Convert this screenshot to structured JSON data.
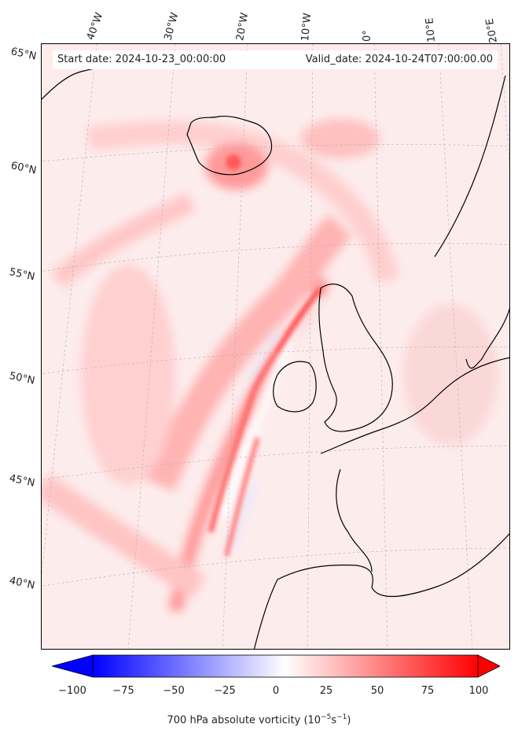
{
  "header": {
    "start_date": "Start date: 2024-10-23_00:00:00",
    "valid_date": "Valid_date: 2024-10-24T07:00:00.00"
  },
  "longitude_labels": [
    "40°W",
    "30°W",
    "20°W",
    "10°W",
    "0°",
    "10°E",
    "20°E"
  ],
  "latitude_labels": [
    "65°N",
    "60°N",
    "55°N",
    "50°N",
    "45°N",
    "40°N"
  ],
  "colorbar": {
    "ticks": [
      "−100",
      "−75",
      "−50",
      "−25",
      "0",
      "25",
      "50",
      "75",
      "100"
    ],
    "label_prefix": "700 hPa absolute vorticity (10",
    "label_exp1": "−5",
    "label_mid": "s",
    "label_exp2": "−1",
    "label_suffix": ")",
    "min_color": "#0000ff",
    "mid_color": "#ffffff",
    "max_color": "#ff0000",
    "range": [
      -100,
      100
    ],
    "extend": "both"
  },
  "field": {
    "variable": "700 hPa absolute vorticity",
    "background_color": "#fdecec",
    "coastline_color": "#000000"
  }
}
